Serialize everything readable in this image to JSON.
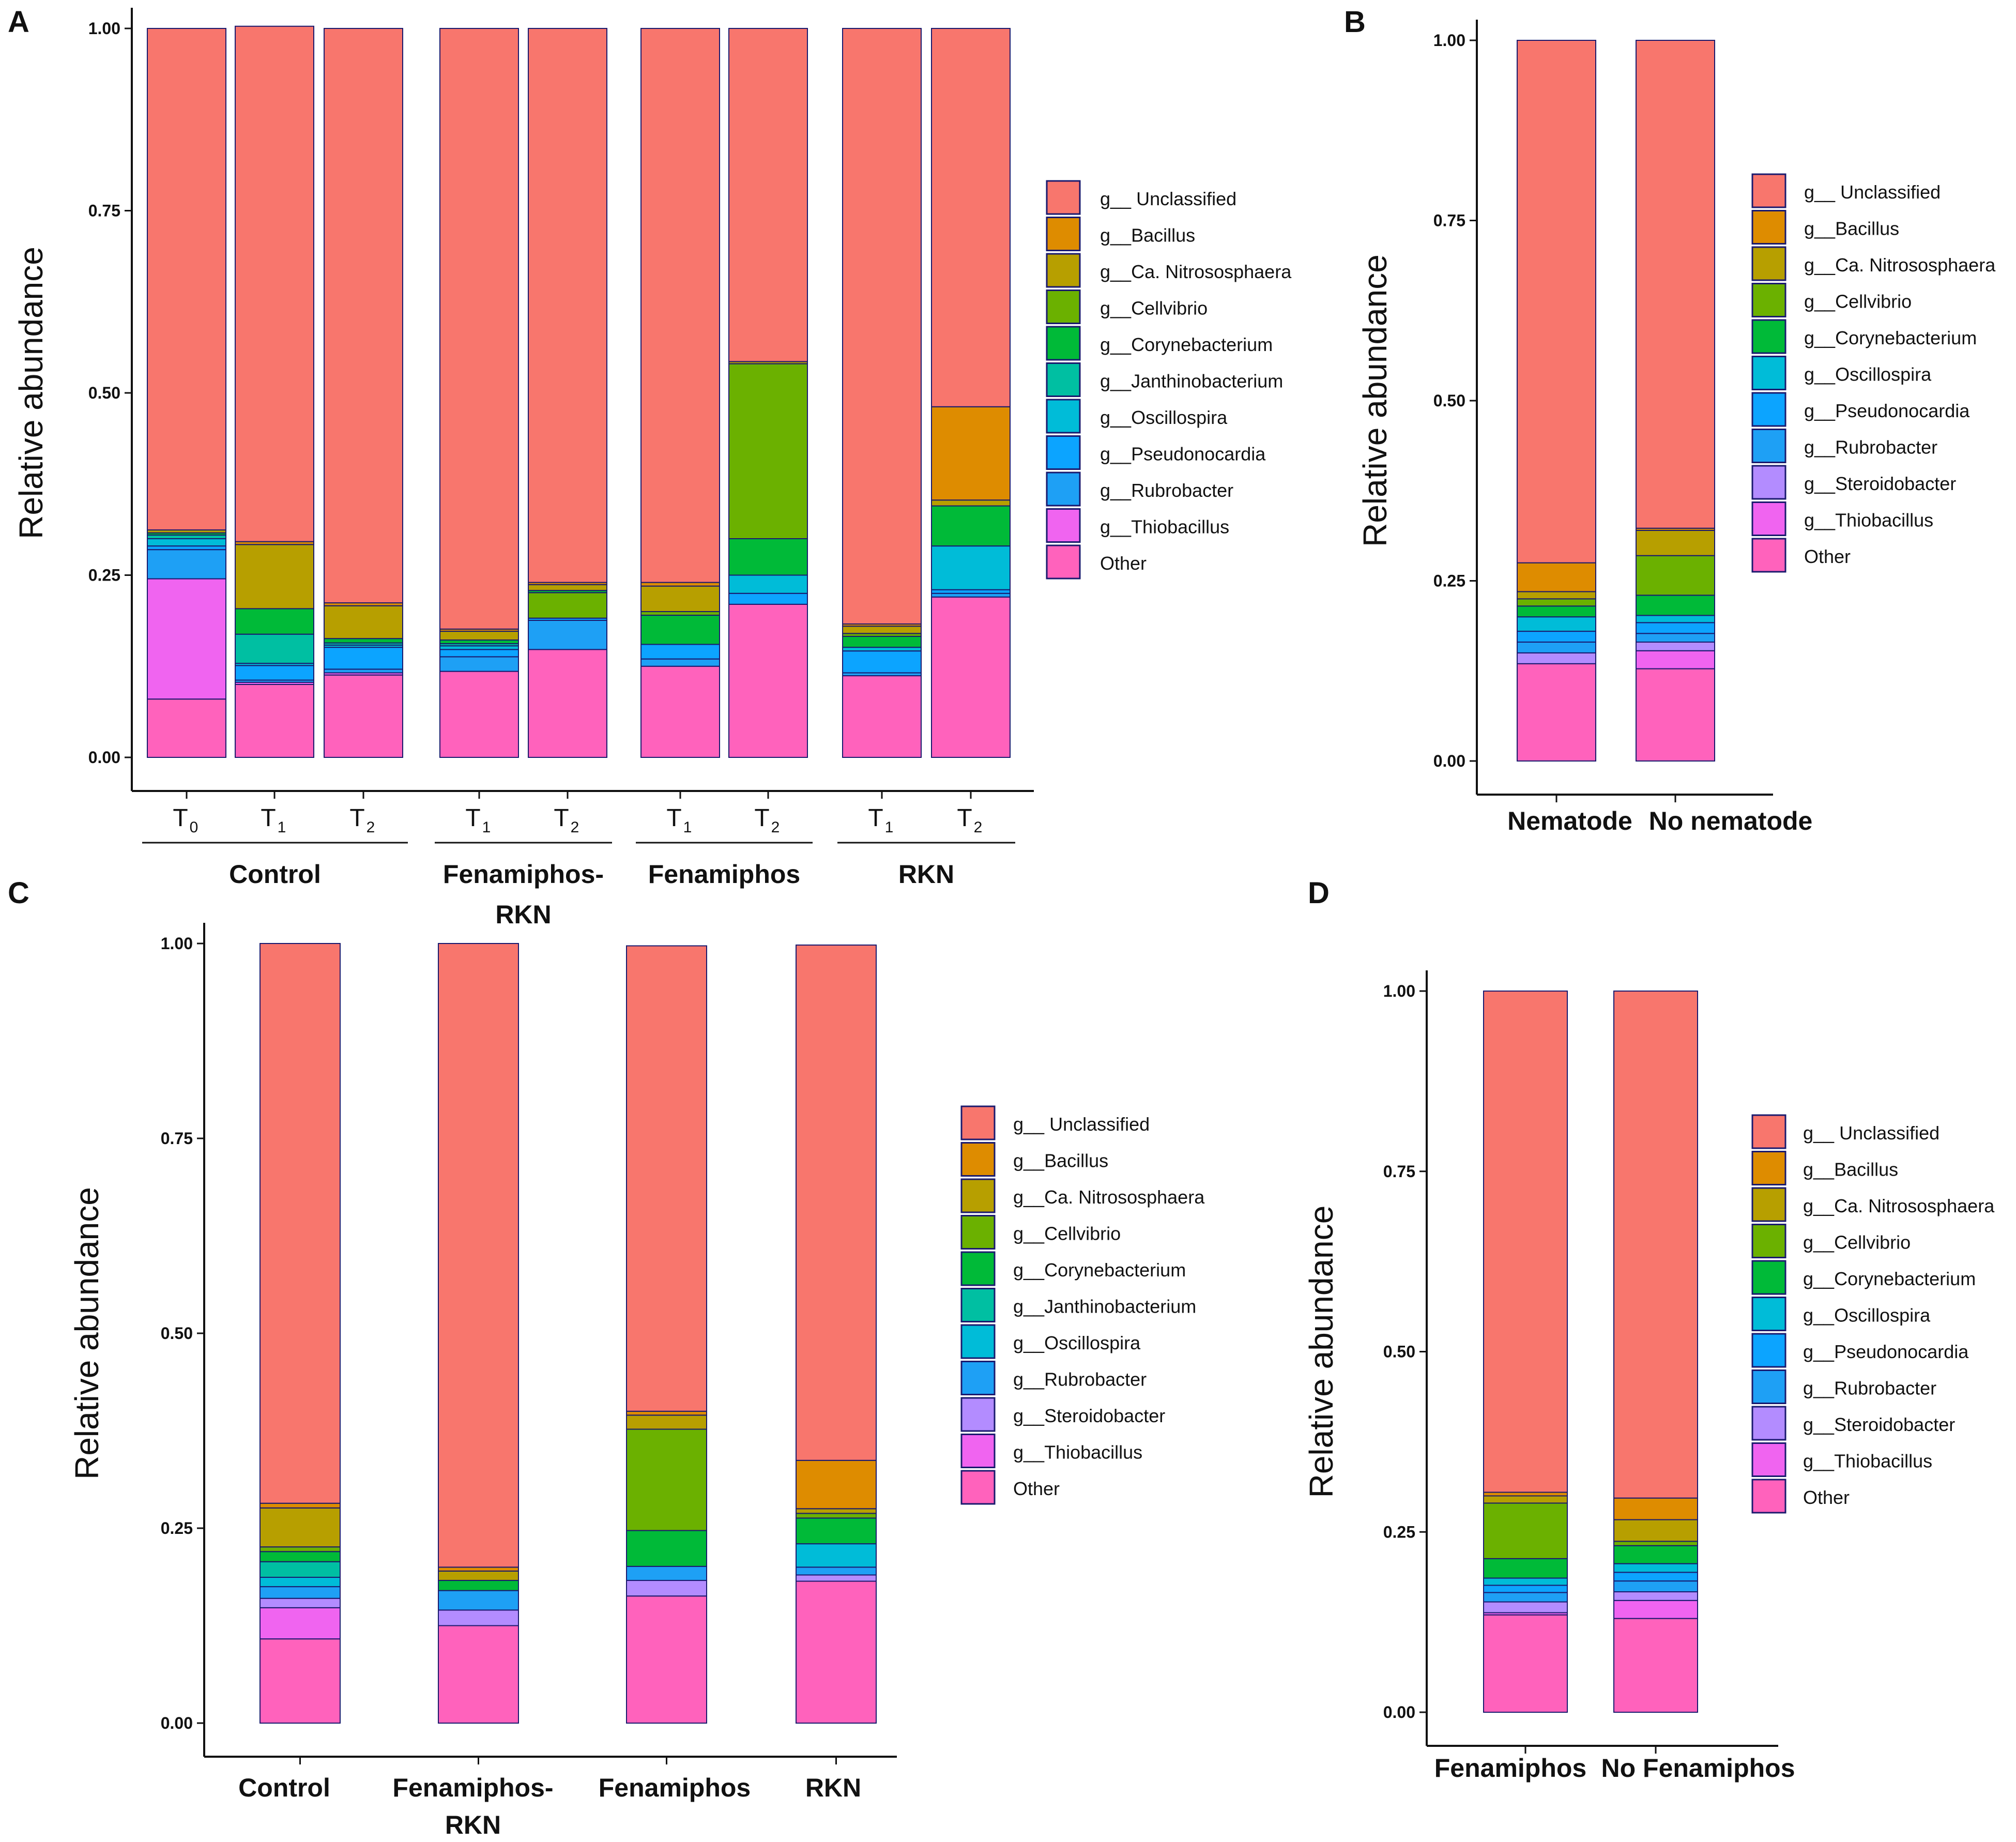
{
  "panel_letters": [
    "A",
    "B",
    "C",
    "D"
  ],
  "genus_prefix": "g__",
  "colors": {
    "Unclassified": "#F8766D",
    "Bacillus": "#DE8C00",
    "Ca. Nitrososphaera": "#B79F00",
    "Cellvibrio": "#6BB100",
    "Corynebacterium": "#00BA38",
    "Janthinobacterium": "#00BFA2",
    "Oscillospira": "#00BCD8",
    "Pseudonocardia": "#0CA4FF",
    "Rubrobacter": "#1EA0F5",
    "Steroidobacter": "#B38CFF",
    "Thiobacillus": "#F064F0",
    "Other": "#FF62BC"
  },
  "chart_data": [
    {
      "panel": "A",
      "type": "stacked-bar",
      "ylabel": "Relative abundance",
      "ylim": [
        0,
        1
      ],
      "yticks": [
        "0.00",
        "0.25",
        "0.50",
        "0.75",
        "1.00"
      ],
      "legend": [
        "g__ Unclassified",
        "g__Bacillus",
        "g__Ca. Nitrososphaera",
        "g__Cellvibrio",
        "g__Corynebacterium",
        "g__Janthinobacterium",
        "g__Oscillospira",
        "g__Pseudonocardia",
        "g__Rubrobacter",
        "g__Thiobacillus",
        "Other"
      ],
      "groups": [
        {
          "label": "Control",
          "bars": [
            "T0",
            "T1",
            "T2"
          ]
        },
        {
          "label": "Fenamiphos-RKN",
          "bars": [
            "T1",
            "T2"
          ]
        },
        {
          "label": "Fenamiphos",
          "bars": [
            "T1",
            "T2"
          ]
        },
        {
          "label": "RKN",
          "bars": [
            "T1",
            "T2"
          ]
        }
      ],
      "bars": [
        {
          "name": "Control T0",
          "tick": "T",
          "sub": "0",
          "segments": [
            [
              "Other",
              0.08
            ],
            [
              "Thiobacillus",
              0.165
            ],
            [
              "Rubrobacter",
              0.04
            ],
            [
              "Pseudonocardia",
              0.005
            ],
            [
              "Oscillospira",
              0.01
            ],
            [
              "Janthinobacterium",
              0.005
            ],
            [
              "Corynebacterium",
              0.003
            ],
            [
              "Ca. Nitrososphaera",
              0.004
            ],
            [
              "Unclassified",
              0.688
            ]
          ]
        },
        {
          "name": "Control T1",
          "tick": "T",
          "sub": "1",
          "segments": [
            [
              "Other",
              0.1
            ],
            [
              "Thiobacillus",
              0.003
            ],
            [
              "Rubrobacter",
              0.003
            ],
            [
              "Pseudonocardia",
              0.02
            ],
            [
              "Oscillospira",
              0.003
            ],
            [
              "Janthinobacterium",
              0.04
            ],
            [
              "Corynebacterium",
              0.035
            ],
            [
              "Ca. Nitrososphaera",
              0.088
            ],
            [
              "Bacillus",
              0.004
            ],
            [
              "Unclassified",
              0.707
            ]
          ]
        },
        {
          "name": "Control T2",
          "tick": "T",
          "sub": "2",
          "segments": [
            [
              "Other",
              0.113
            ],
            [
              "Thiobacillus",
              0.003
            ],
            [
              "Rubrobacter",
              0.005
            ],
            [
              "Pseudonocardia",
              0.03
            ],
            [
              "Oscillospira",
              0.003
            ],
            [
              "Janthinobacterium",
              0.003
            ],
            [
              "Corynebacterium",
              0.006
            ],
            [
              "Ca. Nitrososphaera",
              0.045
            ],
            [
              "Bacillus",
              0.004
            ],
            [
              "Unclassified",
              0.788
            ]
          ]
        },
        {
          "name": "Fenamiphos-RKN T1",
          "tick": "T",
          "sub": "1",
          "segments": [
            [
              "Other",
              0.118
            ],
            [
              "Rubrobacter",
              0.02
            ],
            [
              "Pseudonocardia",
              0.01
            ],
            [
              "Oscillospira",
              0.005
            ],
            [
              "Janthinobacterium",
              0.003
            ],
            [
              "Corynebacterium",
              0.005
            ],
            [
              "Ca. Nitrososphaera",
              0.012
            ],
            [
              "Bacillus",
              0.003
            ],
            [
              "Unclassified",
              0.824
            ]
          ]
        },
        {
          "name": "Fenamiphos-RKN T2",
          "tick": "T",
          "sub": "2",
          "segments": [
            [
              "Other",
              0.148
            ],
            [
              "Rubrobacter",
              0.04
            ],
            [
              "Pseudonocardia",
              0.003
            ],
            [
              "Cellvibrio",
              0.035
            ],
            [
              "Corynebacterium",
              0.003
            ],
            [
              "Ca. Nitrososphaera",
              0.008
            ],
            [
              "Bacillus",
              0.003
            ],
            [
              "Unclassified",
              0.76
            ]
          ]
        },
        {
          "name": "Fenamiphos T1",
          "tick": "T",
          "sub": "1",
          "segments": [
            [
              "Other",
              0.125
            ],
            [
              "Rubrobacter",
              0.01
            ],
            [
              "Pseudonocardia",
              0.02
            ],
            [
              "Corynebacterium",
              0.04
            ],
            [
              "Cellvibrio",
              0.005
            ],
            [
              "Ca. Nitrososphaera",
              0.035
            ],
            [
              "Bacillus",
              0.005
            ],
            [
              "Unclassified",
              0.76
            ]
          ]
        },
        {
          "name": "Fenamiphos T2",
          "tick": "T",
          "sub": "2",
          "segments": [
            [
              "Other",
              0.21
            ],
            [
              "Pseudonocardia",
              0.015
            ],
            [
              "Oscillospira",
              0.025
            ],
            [
              "Corynebacterium",
              0.05
            ],
            [
              "Cellvibrio",
              0.24
            ],
            [
              "Ca. Nitrososphaera",
              0.003
            ],
            [
              "Unclassified",
              0.457
            ]
          ]
        },
        {
          "name": "RKN T1",
          "tick": "T",
          "sub": "1",
          "segments": [
            [
              "Other",
              0.112
            ],
            [
              "Rubrobacter",
              0.004
            ],
            [
              "Pseudonocardia",
              0.03
            ],
            [
              "Oscillospira",
              0.005
            ],
            [
              "Corynebacterium",
              0.015
            ],
            [
              "Cellvibrio",
              0.004
            ],
            [
              "Ca. Nitrososphaera",
              0.01
            ],
            [
              "Bacillus",
              0.003
            ],
            [
              "Unclassified",
              0.817
            ]
          ]
        },
        {
          "name": "RKN T2",
          "tick": "T",
          "sub": "2",
          "segments": [
            [
              "Other",
              0.22
            ],
            [
              "Rubrobacter",
              0.005
            ],
            [
              "Pseudonocardia",
              0.005
            ],
            [
              "Oscillospira",
              0.06
            ],
            [
              "Corynebacterium",
              0.055
            ],
            [
              "Ca. Nitrososphaera",
              0.008
            ],
            [
              "Bacillus",
              0.128
            ],
            [
              "Unclassified",
              0.519
            ]
          ]
        }
      ]
    },
    {
      "panel": "B",
      "type": "stacked-bar",
      "ylabel": "Relative abundance",
      "ylim": [
        0,
        1
      ],
      "yticks": [
        "0.00",
        "0.25",
        "0.50",
        "0.75",
        "1.00"
      ],
      "legend": [
        "g__ Unclassified",
        "g__Bacillus",
        "g__Ca. Nitrososphaera",
        "g__Cellvibrio",
        "g__Corynebacterium",
        "g__Oscillospira",
        "g__Pseudonocardia",
        "g__Rubrobacter",
        "g__Steroidobacter",
        "g__Thiobacillus",
        "Other"
      ],
      "categories": [
        "Nematode",
        "No nematode"
      ],
      "bars": [
        {
          "name": "Nematode",
          "segments": [
            [
              "Other",
              0.135
            ],
            [
              "Steroidobacter",
              0.015
            ],
            [
              "Rubrobacter",
              0.015
            ],
            [
              "Pseudonocardia",
              0.015
            ],
            [
              "Oscillospira",
              0.02
            ],
            [
              "Corynebacterium",
              0.015
            ],
            [
              "Cellvibrio",
              0.01
            ],
            [
              "Ca. Nitrososphaera",
              0.01
            ],
            [
              "Bacillus",
              0.04
            ],
            [
              "Unclassified",
              0.725
            ]
          ]
        },
        {
          "name": "No nematode",
          "segments": [
            [
              "Other",
              0.128
            ],
            [
              "Thiobacillus",
              0.025
            ],
            [
              "Steroidobacter",
              0.012
            ],
            [
              "Rubrobacter",
              0.012
            ],
            [
              "Pseudonocardia",
              0.015
            ],
            [
              "Oscillospira",
              0.01
            ],
            [
              "Corynebacterium",
              0.028
            ],
            [
              "Cellvibrio",
              0.055
            ],
            [
              "Ca. Nitrososphaera",
              0.035
            ],
            [
              "Bacillus",
              0.003
            ],
            [
              "Unclassified",
              0.677
            ]
          ]
        }
      ]
    },
    {
      "panel": "C",
      "type": "stacked-bar",
      "ylabel": "Relative abundance",
      "ylim": [
        0,
        1
      ],
      "yticks": [
        "0.00",
        "0.25",
        "0.50",
        "0.75",
        "1.00"
      ],
      "legend": [
        "g__ Unclassified",
        "g__Bacillus",
        "g__Ca. Nitrososphaera",
        "g__Cellvibrio",
        "g__Corynebacterium",
        "g__Janthinobacterium",
        "g__Oscillospira",
        "g__Rubrobacter",
        "g__Steroidobacter",
        "g__Thiobacillus",
        "Other"
      ],
      "categories": [
        "Control",
        "Fenamiphos-RKN",
        "Fenamiphos",
        "RKN"
      ],
      "bars": [
        {
          "name": "Control",
          "segments": [
            [
              "Other",
              0.108
            ],
            [
              "Thiobacillus",
              0.04
            ],
            [
              "Steroidobacter",
              0.012
            ],
            [
              "Rubrobacter",
              0.015
            ],
            [
              "Oscillospira",
              0.012
            ],
            [
              "Janthinobacterium",
              0.02
            ],
            [
              "Corynebacterium",
              0.013
            ],
            [
              "Cellvibrio",
              0.006
            ],
            [
              "Ca. Nitrososphaera",
              0.05
            ],
            [
              "Bacillus",
              0.006
            ],
            [
              "Unclassified",
              0.718
            ]
          ]
        },
        {
          "name": "Fenamiphos-RKN",
          "segments": [
            [
              "Other",
              0.125
            ],
            [
              "Steroidobacter",
              0.02
            ],
            [
              "Rubrobacter",
              0.025
            ],
            [
              "Corynebacterium",
              0.013
            ],
            [
              "Ca. Nitrososphaera",
              0.012
            ],
            [
              "Bacillus",
              0.005
            ],
            [
              "Unclassified",
              0.8
            ]
          ]
        },
        {
          "name": "Fenamiphos",
          "segments": [
            [
              "Other",
              0.163
            ],
            [
              "Steroidobacter",
              0.02
            ],
            [
              "Rubrobacter",
              0.018
            ],
            [
              "Corynebacterium",
              0.046
            ],
            [
              "Cellvibrio",
              0.13
            ],
            [
              "Ca. Nitrososphaera",
              0.018
            ],
            [
              "Bacillus",
              0.005
            ],
            [
              "Unclassified",
              0.597
            ]
          ]
        },
        {
          "name": "RKN",
          "segments": [
            [
              "Other",
              0.182
            ],
            [
              "Steroidobacter",
              0.008
            ],
            [
              "Rubrobacter",
              0.01
            ],
            [
              "Oscillospira",
              0.03
            ],
            [
              "Corynebacterium",
              0.033
            ],
            [
              "Cellvibrio",
              0.006
            ],
            [
              "Ca. Nitrososphaera",
              0.006
            ],
            [
              "Bacillus",
              0.062
            ],
            [
              "Unclassified",
              0.661
            ]
          ]
        }
      ]
    },
    {
      "panel": "D",
      "type": "stacked-bar",
      "ylabel": "Relative abundance",
      "ylim": [
        0,
        1
      ],
      "yticks": [
        "0.00",
        "0.25",
        "0.50",
        "0.75",
        "1.00"
      ],
      "legend": [
        "g__ Unclassified",
        "g__Bacillus",
        "g__Ca. Nitrososphaera",
        "g__Cellvibrio",
        "g__Corynebacterium",
        "g__Oscillospira",
        "g__Pseudonocardia",
        "g__Rubrobacter",
        "g__Steroidobacter",
        "g__Thiobacillus",
        "Other"
      ],
      "categories": [
        "Fenamiphos",
        "No Fenamiphos"
      ],
      "bars": [
        {
          "name": "Fenamiphos",
          "segments": [
            [
              "Other",
              0.135
            ],
            [
              "Thiobacillus",
              0.003
            ],
            [
              "Steroidobacter",
              0.015
            ],
            [
              "Rubrobacter",
              0.013
            ],
            [
              "Pseudonocardia",
              0.01
            ],
            [
              "Oscillospira",
              0.01
            ],
            [
              "Corynebacterium",
              0.027
            ],
            [
              "Cellvibrio",
              0.077
            ],
            [
              "Ca. Nitrososphaera",
              0.01
            ],
            [
              "Bacillus",
              0.005
            ],
            [
              "Unclassified",
              0.695
            ]
          ]
        },
        {
          "name": "No Fenamiphos",
          "segments": [
            [
              "Other",
              0.13
            ],
            [
              "Thiobacillus",
              0.025
            ],
            [
              "Steroidobacter",
              0.012
            ],
            [
              "Rubrobacter",
              0.015
            ],
            [
              "Pseudonocardia",
              0.012
            ],
            [
              "Oscillospira",
              0.012
            ],
            [
              "Corynebacterium",
              0.025
            ],
            [
              "Cellvibrio",
              0.006
            ],
            [
              "Ca. Nitrososphaera",
              0.03
            ],
            [
              "Bacillus",
              0.03
            ],
            [
              "Unclassified",
              0.703
            ]
          ]
        }
      ]
    }
  ]
}
